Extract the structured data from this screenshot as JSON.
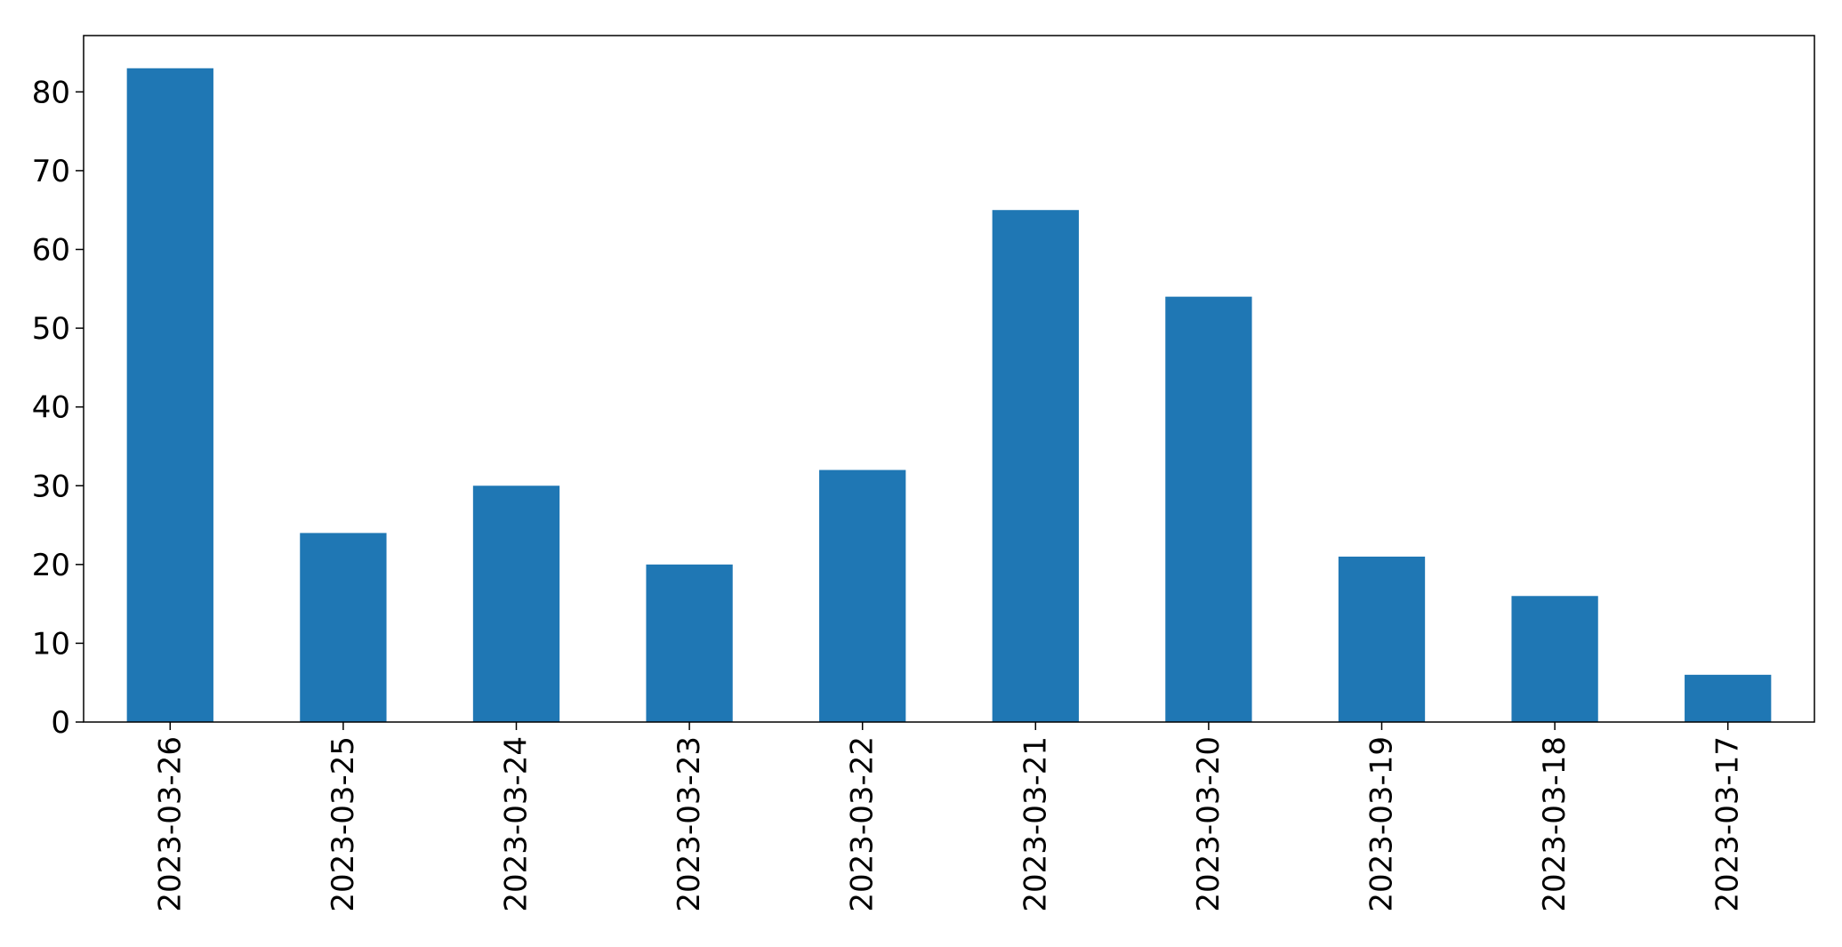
{
  "chart_data": {
    "type": "bar",
    "title": "",
    "xlabel": "",
    "ylabel": "",
    "categories": [
      "2023-03-26",
      "2023-03-25",
      "2023-03-24",
      "2023-03-23",
      "2023-03-22",
      "2023-03-21",
      "2023-03-20",
      "2023-03-19",
      "2023-03-18",
      "2023-03-17"
    ],
    "values": [
      83,
      24,
      30,
      20,
      32,
      65,
      54,
      21,
      16,
      6
    ],
    "ylim": [
      0,
      87.15
    ],
    "yticks": [
      0,
      10,
      20,
      30,
      40,
      50,
      60,
      70,
      80
    ],
    "bar_color": "#1f77b4",
    "grid": false,
    "legend": "none"
  }
}
